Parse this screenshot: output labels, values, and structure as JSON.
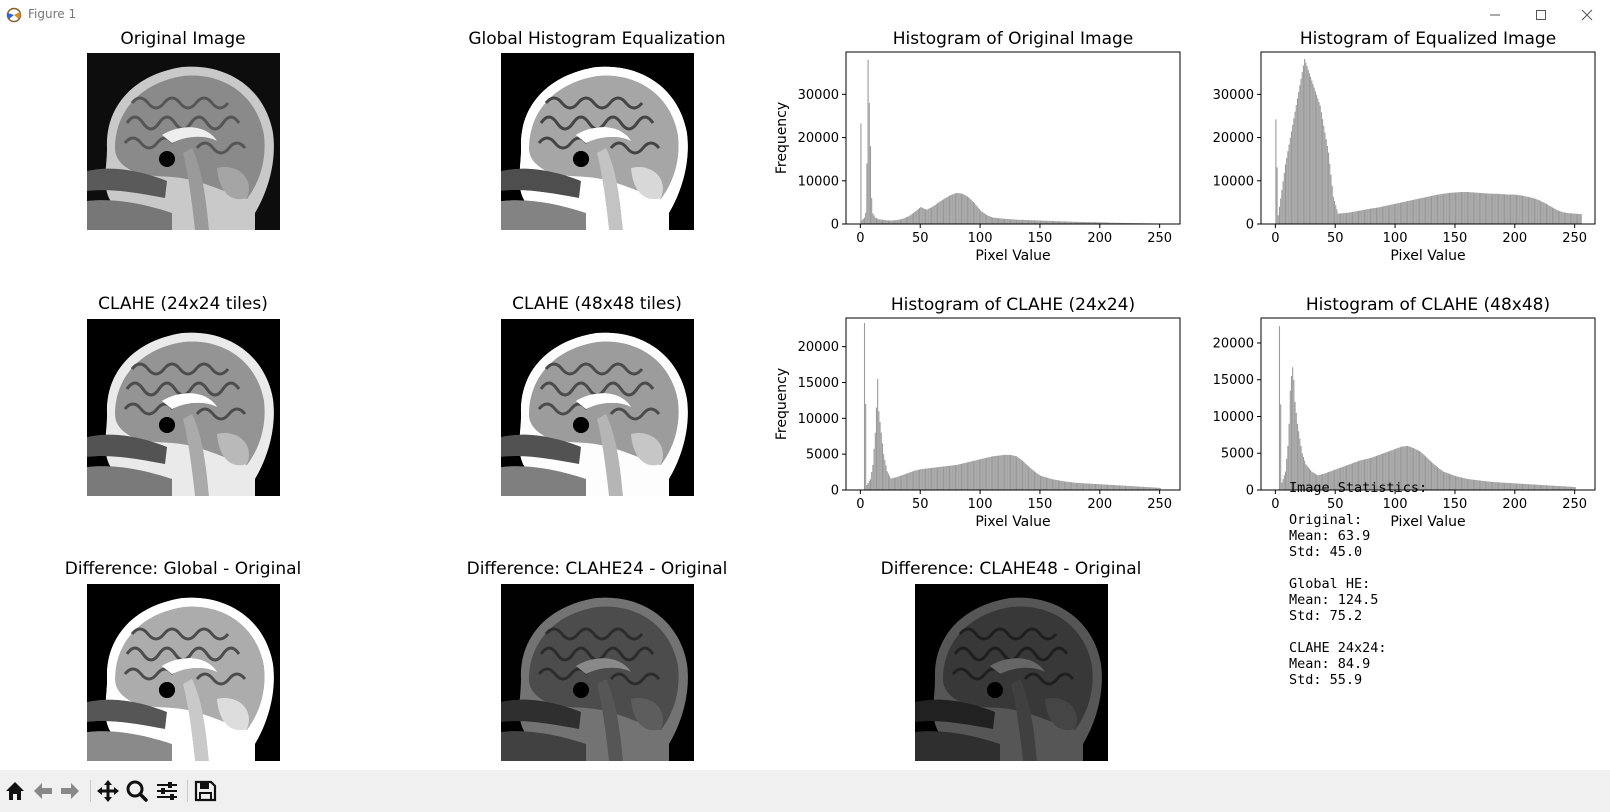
{
  "window": {
    "title": "Figure 1",
    "icons": {
      "app": "matplotlib-icon",
      "minimize": "minimize-icon",
      "maximize": "maximize-icon",
      "close": "close-icon"
    }
  },
  "panels": {
    "original_image": {
      "title": "Original Image"
    },
    "global_he_image": {
      "title": "Global Histogram Equalization"
    },
    "clahe24_image": {
      "title": "CLAHE (24x24 tiles)"
    },
    "clahe48_image": {
      "title": "CLAHE (48x48 tiles)"
    },
    "diff_global": {
      "title": "Difference: Global - Original"
    },
    "diff_clahe24": {
      "title": "Difference: CLAHE24 - Original"
    },
    "diff_clahe48": {
      "title": "Difference: CLAHE48 - Original"
    }
  },
  "stats_text": "Image Statistics:\n\nOriginal:\nMean: 63.9\nStd: 45.0\n\nGlobal HE:\nMean: 124.5\nStd: 75.2\n\nCLAHE 24x24:\nMean: 84.9\nStd: 55.9",
  "chart_data": [
    {
      "type": "bar",
      "title": "Histogram of Original Image",
      "xlabel": "Pixel Value",
      "ylabel": "Frequency",
      "xlim": [
        -12,
        267
      ],
      "ylim": [
        0,
        39800
      ],
      "xticks": [
        0,
        50,
        100,
        150,
        200,
        250
      ],
      "yticks": [
        0,
        10000,
        20000,
        30000
      ],
      "color": "#999999",
      "points": [
        [
          0,
          23300
        ],
        [
          1,
          900
        ],
        [
          2,
          1200
        ],
        [
          3,
          1500
        ],
        [
          4,
          2600
        ],
        [
          5,
          14000
        ],
        [
          6,
          38000
        ],
        [
          7,
          28000
        ],
        [
          8,
          18000
        ],
        [
          9,
          6000
        ],
        [
          10,
          2500
        ],
        [
          12,
          1500
        ],
        [
          15,
          1100
        ],
        [
          20,
          900
        ],
        [
          25,
          800
        ],
        [
          30,
          900
        ],
        [
          35,
          1200
        ],
        [
          40,
          1800
        ],
        [
          45,
          2800
        ],
        [
          50,
          3900
        ],
        [
          55,
          3300
        ],
        [
          60,
          4000
        ],
        [
          65,
          5000
        ],
        [
          70,
          5900
        ],
        [
          75,
          6700
        ],
        [
          80,
          7200
        ],
        [
          85,
          7000
        ],
        [
          90,
          6200
        ],
        [
          95,
          4800
        ],
        [
          100,
          3100
        ],
        [
          105,
          2100
        ],
        [
          110,
          1500
        ],
        [
          120,
          1200
        ],
        [
          130,
          1000
        ],
        [
          140,
          900
        ],
        [
          150,
          800
        ],
        [
          160,
          700
        ],
        [
          170,
          600
        ],
        [
          180,
          500
        ],
        [
          190,
          450
        ],
        [
          200,
          400
        ],
        [
          210,
          300
        ],
        [
          220,
          250
        ],
        [
          230,
          200
        ],
        [
          240,
          150
        ],
        [
          250,
          100
        ],
        [
          255,
          80
        ]
      ]
    },
    {
      "type": "bar",
      "title": "Histogram of Equalized Image",
      "xlabel": "Pixel Value",
      "ylabel": "",
      "xlim": [
        -12,
        267
      ],
      "ylim": [
        0,
        39800
      ],
      "xticks": [
        0,
        50,
        100,
        150,
        200,
        250
      ],
      "yticks": [
        0,
        10000,
        20000,
        30000
      ],
      "color": "#999999",
      "points": [
        [
          0,
          24200
        ],
        [
          2,
          2000
        ],
        [
          8,
          13800
        ],
        [
          24,
          38200
        ],
        [
          37,
          27400
        ],
        [
          44,
          16500
        ],
        [
          48,
          6300
        ],
        [
          52,
          2400
        ],
        [
          56,
          2500
        ],
        [
          60,
          2600
        ],
        [
          64,
          2800
        ],
        [
          68,
          3000
        ],
        [
          72,
          3200
        ],
        [
          76,
          3400
        ],
        [
          80,
          3600
        ],
        [
          85,
          3800
        ],
        [
          90,
          4100
        ],
        [
          95,
          4400
        ],
        [
          100,
          4700
        ],
        [
          105,
          5000
        ],
        [
          110,
          5300
        ],
        [
          115,
          5600
        ],
        [
          120,
          5900
        ],
        [
          125,
          6200
        ],
        [
          130,
          6500
        ],
        [
          135,
          6800
        ],
        [
          140,
          7000
        ],
        [
          145,
          7200
        ],
        [
          150,
          7300
        ],
        [
          155,
          7400
        ],
        [
          160,
          7400
        ],
        [
          165,
          7300
        ],
        [
          170,
          7200
        ],
        [
          175,
          7100
        ],
        [
          180,
          7000
        ],
        [
          185,
          7000
        ],
        [
          190,
          6900
        ],
        [
          195,
          6800
        ],
        [
          200,
          6800
        ],
        [
          205,
          6600
        ],
        [
          210,
          6300
        ],
        [
          215,
          6000
        ],
        [
          220,
          5500
        ],
        [
          225,
          4800
        ],
        [
          230,
          4000
        ],
        [
          235,
          3200
        ],
        [
          240,
          2700
        ],
        [
          245,
          2500
        ],
        [
          250,
          2400
        ],
        [
          255,
          2300
        ]
      ]
    },
    {
      "type": "bar",
      "title": "Histogram of CLAHE (24x24)",
      "xlabel": "Pixel Value",
      "ylabel": "Frequency",
      "xlim": [
        -12,
        267
      ],
      "ylim": [
        0,
        24000
      ],
      "xticks": [
        0,
        50,
        100,
        150,
        200,
        250
      ],
      "yticks": [
        0,
        5000,
        10000,
        15000,
        20000
      ],
      "color": "#999999",
      "points": [
        [
          3,
          23300
        ],
        [
          5,
          700
        ],
        [
          8,
          1500
        ],
        [
          10,
          3500
        ],
        [
          12,
          8000
        ],
        [
          13,
          11500
        ],
        [
          14,
          15500
        ],
        [
          15,
          11000
        ],
        [
          17,
          8000
        ],
        [
          19,
          5000
        ],
        [
          22,
          2600
        ],
        [
          25,
          1600
        ],
        [
          30,
          1800
        ],
        [
          35,
          2100
        ],
        [
          40,
          2400
        ],
        [
          45,
          2700
        ],
        [
          50,
          2900
        ],
        [
          55,
          3000
        ],
        [
          60,
          3100
        ],
        [
          65,
          3200
        ],
        [
          70,
          3300
        ],
        [
          75,
          3400
        ],
        [
          80,
          3500
        ],
        [
          85,
          3700
        ],
        [
          90,
          3900
        ],
        [
          95,
          4100
        ],
        [
          100,
          4300
        ],
        [
          105,
          4500
        ],
        [
          110,
          4700
        ],
        [
          115,
          4800
        ],
        [
          120,
          4900
        ],
        [
          125,
          4900
        ],
        [
          130,
          4700
        ],
        [
          135,
          4100
        ],
        [
          140,
          3300
        ],
        [
          145,
          2600
        ],
        [
          150,
          2000
        ],
        [
          160,
          1500
        ],
        [
          170,
          1200
        ],
        [
          180,
          1000
        ],
        [
          190,
          900
        ],
        [
          200,
          800
        ],
        [
          210,
          700
        ],
        [
          220,
          600
        ],
        [
          230,
          500
        ],
        [
          240,
          400
        ],
        [
          250,
          300
        ]
      ]
    },
    {
      "type": "bar",
      "title": "Histogram of CLAHE (48x48)",
      "xlabel": "Pixel Value",
      "ylabel": "",
      "xlim": [
        -12,
        267
      ],
      "ylim": [
        0,
        23400
      ],
      "xticks": [
        0,
        50,
        100,
        150,
        200,
        250
      ],
      "yticks": [
        0,
        5000,
        10000,
        15000,
        20000
      ],
      "color": "#999999",
      "points": [
        [
          3,
          22300
        ],
        [
          5,
          1000
        ],
        [
          8,
          2500
        ],
        [
          10,
          6000
        ],
        [
          11,
          9000
        ],
        [
          12,
          13500
        ],
        [
          13,
          15500
        ],
        [
          14,
          16700
        ],
        [
          15,
          15000
        ],
        [
          16,
          12000
        ],
        [
          18,
          9000
        ],
        [
          20,
          7000
        ],
        [
          22,
          5000
        ],
        [
          25,
          3500
        ],
        [
          30,
          2500
        ],
        [
          35,
          2000
        ],
        [
          40,
          2200
        ],
        [
          45,
          2500
        ],
        [
          50,
          2800
        ],
        [
          55,
          3100
        ],
        [
          60,
          3400
        ],
        [
          65,
          3700
        ],
        [
          70,
          4000
        ],
        [
          75,
          4200
        ],
        [
          80,
          4400
        ],
        [
          85,
          4700
        ],
        [
          90,
          5000
        ],
        [
          95,
          5300
        ],
        [
          100,
          5600
        ],
        [
          105,
          5900
        ],
        [
          110,
          6000
        ],
        [
          115,
          5700
        ],
        [
          120,
          5300
        ],
        [
          125,
          4600
        ],
        [
          130,
          3800
        ],
        [
          135,
          3100
        ],
        [
          140,
          2500
        ],
        [
          150,
          1900
        ],
        [
          160,
          1500
        ],
        [
          170,
          1300
        ],
        [
          180,
          1100
        ],
        [
          190,
          1000
        ],
        [
          200,
          900
        ],
        [
          210,
          800
        ],
        [
          220,
          700
        ],
        [
          230,
          600
        ],
        [
          240,
          500
        ],
        [
          250,
          400
        ]
      ]
    }
  ],
  "toolbar": {
    "buttons": [
      {
        "name": "home",
        "icon": "home-icon"
      },
      {
        "name": "back",
        "icon": "arrow-left-icon"
      },
      {
        "name": "forward",
        "icon": "arrow-right-icon"
      },
      {
        "name": "pan",
        "icon": "move-icon"
      },
      {
        "name": "zoom",
        "icon": "magnifier-icon"
      },
      {
        "name": "configure",
        "icon": "sliders-icon"
      },
      {
        "name": "save",
        "icon": "floppy-disk-icon"
      }
    ]
  }
}
